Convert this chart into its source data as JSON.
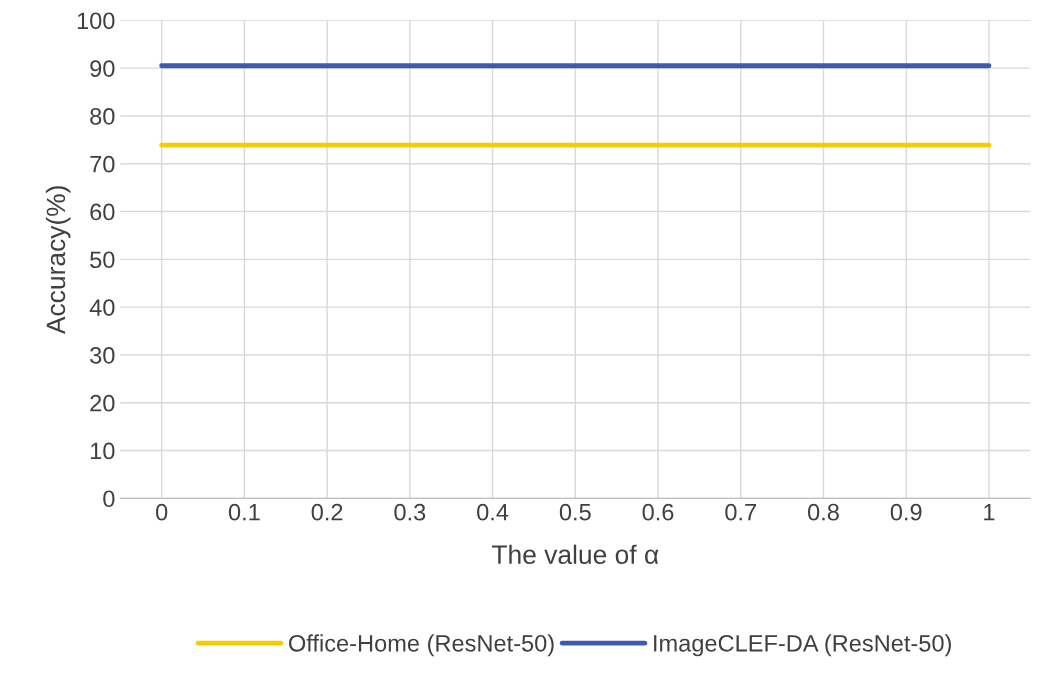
{
  "chart_data": {
    "type": "line",
    "xlabel": "The value of α",
    "ylabel": "Accuracy(%)",
    "categories": [
      "0",
      "0.1",
      "0.2",
      "0.3",
      "0.4",
      "0.5",
      "0.6",
      "0.7",
      "0.8",
      "0.9",
      "1"
    ],
    "series": [
      {
        "name": "Office-Home (ResNet-50)",
        "color": "#f2cd00",
        "values": [
          73.9,
          73.9,
          73.9,
          73.9,
          73.9,
          73.9,
          73.9,
          73.9,
          73.9,
          73.9,
          73.9
        ]
      },
      {
        "name": "ImageCLEF-DA (ResNet-50)",
        "color": "#3a5bb0",
        "values": [
          90.5,
          90.5,
          90.5,
          90.5,
          90.5,
          90.5,
          90.5,
          90.5,
          90.5,
          90.5,
          90.5
        ]
      }
    ],
    "ylim": [
      0,
      100
    ],
    "yticks": [
      0,
      10,
      20,
      30,
      40,
      50,
      60,
      70,
      80,
      90,
      100
    ],
    "grid": true,
    "legend": "bottom"
  }
}
